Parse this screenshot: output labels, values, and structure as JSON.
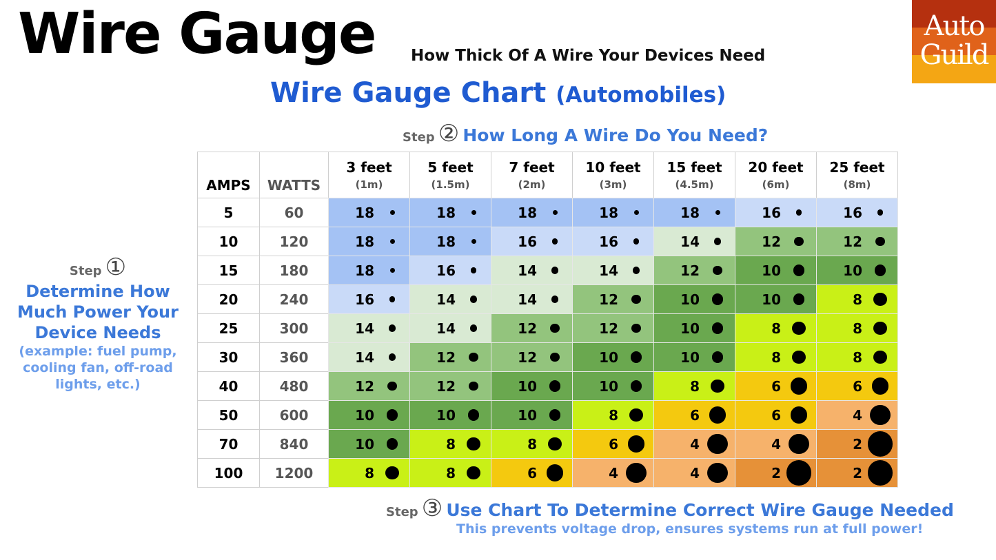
{
  "header": {
    "title": "Wire Gauge",
    "subtitle": "How Thick Of A Wire Your Devices Need",
    "chart_title": "Wire Gauge Chart",
    "chart_title_note": "(Automobiles)"
  },
  "logo": {
    "line1": "Auto",
    "line2": "Guild"
  },
  "steps": [
    {
      "label": "Step",
      "number": "①",
      "text": "Determine How Much Power Your Device Needs",
      "note": "(example: fuel pump, cooling fan, off-road lights, etc.)"
    },
    {
      "label": "Step",
      "number": "②",
      "text": "How Long A Wire Do You Need?"
    },
    {
      "label": "Step",
      "number": "③",
      "text": "Use Chart To Determine Correct Wire Gauge Needed",
      "note": "This prevents voltage drop, ensures systems run at full power!"
    }
  ],
  "table": {
    "amps_header": "AMPS",
    "watts_header": "WATTS",
    "lengths": [
      {
        "feet": "3 feet",
        "meters": "(1m)"
      },
      {
        "feet": "5 feet",
        "meters": "(1.5m)"
      },
      {
        "feet": "7 feet",
        "meters": "(2m)"
      },
      {
        "feet": "10 feet",
        "meters": "(3m)"
      },
      {
        "feet": "15 feet",
        "meters": "(4.5m)"
      },
      {
        "feet": "20 feet",
        "meters": "(6m)"
      },
      {
        "feet": "25 feet",
        "meters": "(8m)"
      }
    ],
    "rows": [
      {
        "amps": 5,
        "watts": 60,
        "gauges": [
          18,
          18,
          18,
          18,
          18,
          16,
          16
        ]
      },
      {
        "amps": 10,
        "watts": 120,
        "gauges": [
          18,
          18,
          16,
          16,
          14,
          12,
          12
        ]
      },
      {
        "amps": 15,
        "watts": 180,
        "gauges": [
          18,
          16,
          14,
          14,
          12,
          10,
          10
        ]
      },
      {
        "amps": 20,
        "watts": 240,
        "gauges": [
          16,
          14,
          14,
          12,
          10,
          10,
          8
        ]
      },
      {
        "amps": 25,
        "watts": 300,
        "gauges": [
          14,
          14,
          12,
          12,
          10,
          8,
          8
        ]
      },
      {
        "amps": 30,
        "watts": 360,
        "gauges": [
          14,
          12,
          12,
          10,
          10,
          8,
          8
        ]
      },
      {
        "amps": 40,
        "watts": 480,
        "gauges": [
          12,
          12,
          10,
          10,
          8,
          6,
          6
        ]
      },
      {
        "amps": 50,
        "watts": 600,
        "gauges": [
          10,
          10,
          10,
          8,
          6,
          6,
          4
        ]
      },
      {
        "amps": 70,
        "watts": 840,
        "gauges": [
          10,
          8,
          8,
          6,
          4,
          4,
          2
        ]
      },
      {
        "amps": 100,
        "watts": 1200,
        "gauges": [
          8,
          8,
          6,
          4,
          4,
          2,
          2
        ]
      }
    ],
    "colors": [
      "#a4c2f4",
      "#c9daf8",
      "#d9ead3",
      "#93c47d",
      "#6aa84f",
      "#c9f017",
      "#f4c90f",
      "#f6b26b",
      "#e69138"
    ]
  }
}
